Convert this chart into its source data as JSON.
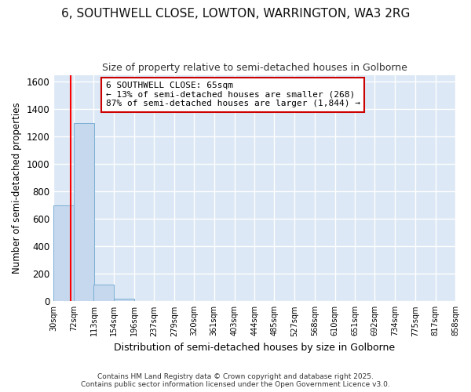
{
  "title_line1": "6, SOUTHWELL CLOSE, LOWTON, WARRINGTON, WA3 2RG",
  "title_line2": "Size of property relative to semi-detached houses in Golborne",
  "xlabel": "Distribution of semi-detached houses by size in Golborne",
  "ylabel": "Number of semi-detached properties",
  "bar_color": "#c5d8ee",
  "bar_edge_color": "#7aafd4",
  "bins": [
    30,
    72,
    113,
    154,
    196,
    237,
    279,
    320,
    361,
    403,
    444,
    485,
    527,
    568,
    610,
    651,
    692,
    734,
    775,
    817,
    858
  ],
  "heights": [
    700,
    1300,
    120,
    20,
    0,
    0,
    0,
    0,
    0,
    0,
    0,
    0,
    0,
    0,
    0,
    0,
    0,
    0,
    0,
    0
  ],
  "tick_labels": [
    "30sqm",
    "72sqm",
    "113sqm",
    "154sqm",
    "196sqm",
    "237sqm",
    "279sqm",
    "320sqm",
    "361sqm",
    "403sqm",
    "444sqm",
    "485sqm",
    "527sqm",
    "568sqm",
    "610sqm",
    "651sqm",
    "692sqm",
    "734sqm",
    "775sqm",
    "817sqm",
    "858sqm"
  ],
  "red_line_x": 65,
  "ylim": [
    0,
    1650
  ],
  "yticks": [
    0,
    200,
    400,
    600,
    800,
    1000,
    1200,
    1400,
    1600
  ],
  "annotation_title": "6 SOUTHWELL CLOSE: 65sqm",
  "annotation_line2": "← 13% of semi-detached houses are smaller (268)",
  "annotation_line3": "87% of semi-detached houses are larger (1,844) →",
  "annotation_box_color": "#ffffff",
  "annotation_box_edge": "#cc0000",
  "footer_line1": "Contains HM Land Registry data © Crown copyright and database right 2025.",
  "footer_line2": "Contains public sector information licensed under the Open Government Licence v3.0.",
  "bg_color": "#ffffff",
  "plot_bg_color": "#dce8f5",
  "grid_color": "#ffffff"
}
